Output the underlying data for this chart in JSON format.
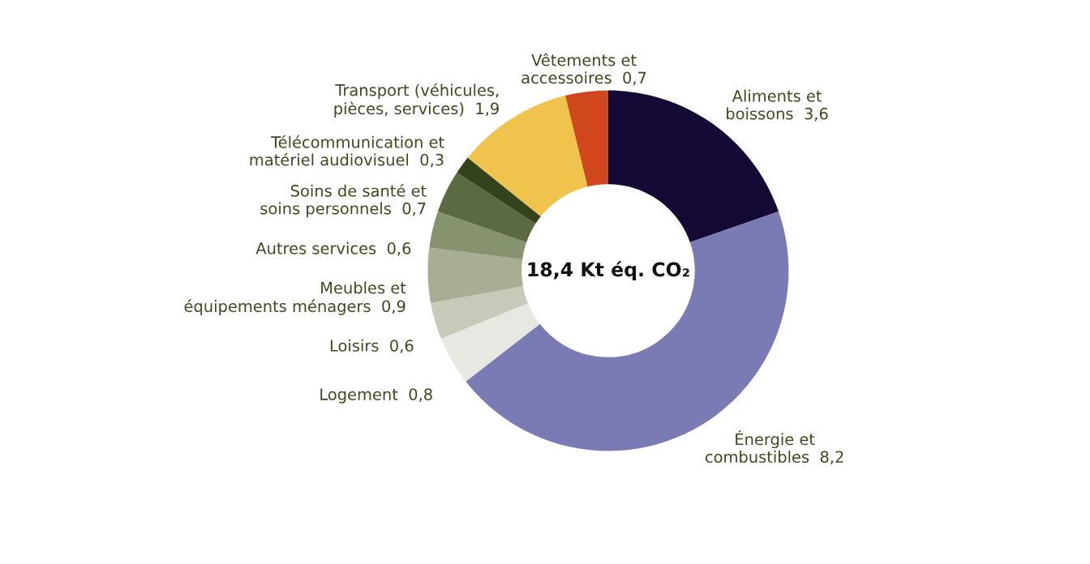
{
  "chart_data": {
    "type": "donut",
    "categories": [
      "Aliments et boissons",
      "Énergie et combustibles",
      "Logement",
      "Loisirs",
      "Meubles et équipements ménagers",
      "Autres services",
      "Soins de santé et soins personnels",
      "Télécommunication et matériel audiovisuel",
      "Transport (véhicules, pièces, services)",
      "Vêtements et accessoires"
    ],
    "values": [
      3.6,
      8.2,
      0.8,
      0.6,
      0.9,
      0.6,
      0.7,
      0.3,
      1.9,
      0.7
    ],
    "value_labels": [
      "3,6",
      "8,2",
      "0,8",
      "0,6",
      "0,9",
      "0,6",
      "0,7",
      "0,3",
      "1,9",
      "0,7"
    ],
    "colors": [
      "#140a35",
      "#7a7ab4",
      "#e8e8e3",
      "#c6cbb9",
      "#a7ae95",
      "#87926f",
      "#5b6a43",
      "#33441c",
      "#f0c44c",
      "#d0471d"
    ],
    "annotations": [
      "18,4 Kt éq. CO₂"
    ],
    "legend": false
  }
}
